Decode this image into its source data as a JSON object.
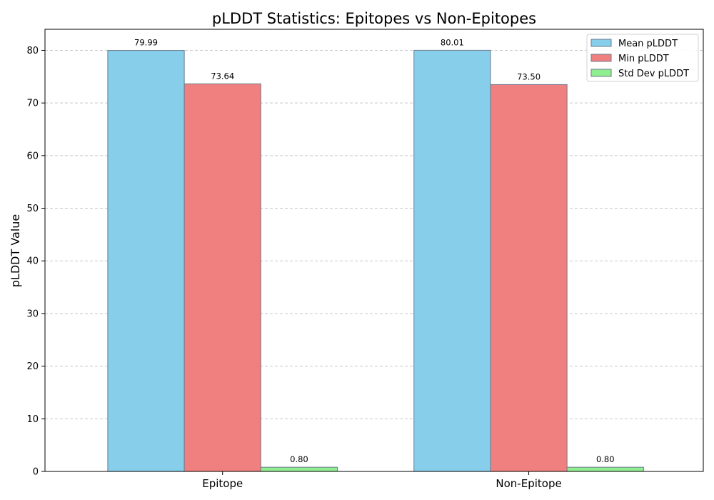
{
  "chart_data": {
    "type": "bar",
    "title": "pLDDT Statistics: Epitopes vs Non-Epitopes",
    "xlabel": "",
    "ylabel": "pLDDT Value",
    "categories": [
      "Epitope",
      "Non-Epitope"
    ],
    "series": [
      {
        "name": "Mean pLDDT",
        "values": [
          79.99,
          80.01
        ],
        "labels": [
          "79.99",
          "80.01"
        ],
        "color": "#87CEEB"
      },
      {
        "name": "Min pLDDT",
        "values": [
          73.64,
          73.5
        ],
        "labels": [
          "73.64",
          "73.50"
        ],
        "color": "#F08080"
      },
      {
        "name": "Std Dev pLDDT",
        "values": [
          0.8,
          0.8
        ],
        "labels": [
          "0.80",
          "0.80"
        ],
        "color": "#90EE90"
      }
    ],
    "ylim": [
      0,
      84
    ],
    "yticks": [
      0,
      10,
      20,
      30,
      40,
      50,
      60,
      70,
      80
    ],
    "grid": "y-dashed",
    "legend": "top-right",
    "bar_edge_color": "#6b7b8c",
    "grid_color": "#c8c8c8"
  }
}
